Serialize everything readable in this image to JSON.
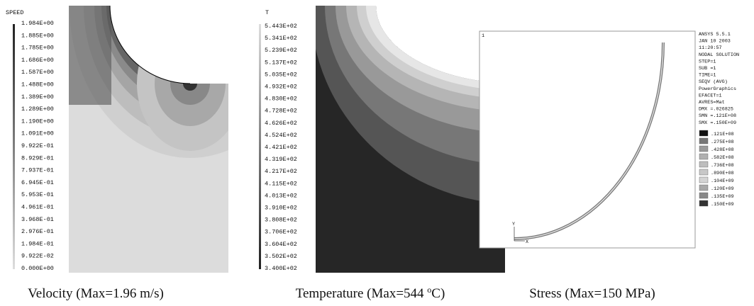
{
  "panels": [
    {
      "label": "SPEED",
      "legend": [
        "1.984E+00",
        "1.885E+00",
        "1.785E+00",
        "1.686E+00",
        "1.587E+00",
        "1.488E+00",
        "1.389E+00",
        "1.289E+00",
        "1.190E+00",
        "1.091E+00",
        "9.922E-01",
        "8.929E-01",
        "7.937E-01",
        "6.945E-01",
        "5.953E-01",
        "4.961E-01",
        "3.968E-01",
        "2.976E-01",
        "1.984E-01",
        "9.922E-02",
        "0.000E+00"
      ],
      "caption": "Velocity (Max=1.96 m/s)"
    },
    {
      "label": "T",
      "legend": [
        "5.443E+02",
        "5.341E+02",
        "5.239E+02",
        "5.137E+02",
        "5.035E+02",
        "4.932E+02",
        "4.830E+02",
        "4.728E+02",
        "4.626E+02",
        "4.524E+02",
        "4.421E+02",
        "4.319E+02",
        "4.217E+02",
        "4.115E+02",
        "4.013E+02",
        "3.910E+02",
        "3.808E+02",
        "3.706E+02",
        "3.604E+02",
        "3.502E+02",
        "3.400E+02"
      ],
      "caption": "Temperature (Max=544 ",
      "caption_sup": "o",
      "caption_end": "C)"
    },
    {
      "window": "1",
      "axis_x": "X",
      "axis_y": "Y",
      "info": [
        "ANSYS 5.5.1",
        "JAN 10 2003",
        "11:20:57",
        "NODAL SOLUTION",
        "STEP=1",
        "SUB =1",
        "TIME=1",
        "SEQV      (AVG)",
        "PowerGraphics",
        "EFACET=1",
        "AVRES=Mat",
        "DMX =.026825",
        "SMN =.121E+08",
        "SMX =.150E+09"
      ],
      "legend": [
        ".121E+08",
        ".275E+08",
        ".428E+08",
        ".582E+08",
        ".736E+08",
        ".890E+08",
        ".104E+09",
        ".120E+09",
        ".135E+09",
        ".150E+09"
      ],
      "caption": "Stress (Max=150 MPa)"
    }
  ]
}
